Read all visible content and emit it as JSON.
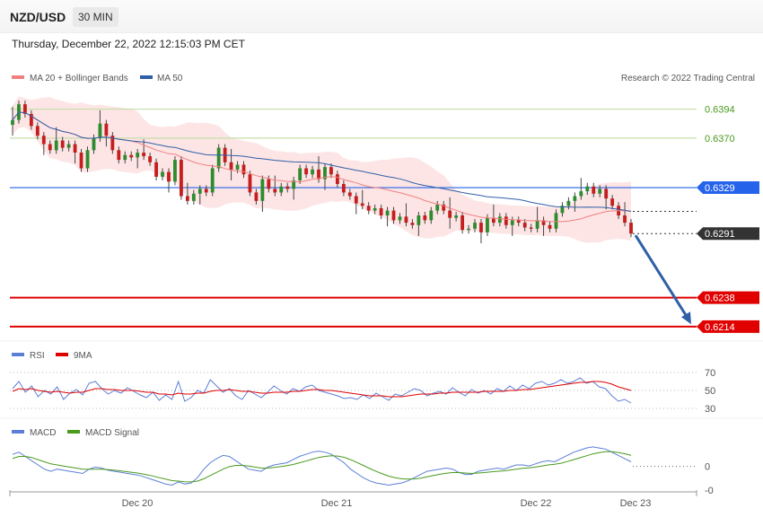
{
  "header": {
    "pair": "NZD/USD",
    "timeframe": "30 MIN",
    "datetime": "Thursday, December 22, 2022 12:15:03 PM CET",
    "copyright": "Research © 2022 Trading Central"
  },
  "colors": {
    "ma20": "#f08080",
    "ma50": "#2f5fa8",
    "bollinger": "#fde0e0",
    "bull": "#2e8b2e",
    "bear": "#c41e1e",
    "support": "#e00000",
    "resistance_green": "#7ab55c",
    "pivot_blue": "#2563eb",
    "current": "#333333",
    "arrow": "#2f5fa8",
    "rsi": "#5b7fd6",
    "rsi_ma": "#e00000",
    "macd": "#5b7fd6",
    "macd_signal": "#4a9a1e"
  },
  "chart_data": [
    {
      "type": "candlestick",
      "legend": [
        "MA 20 + Bollinger Bands",
        "MA 50"
      ],
      "ylim": [
        0.6205,
        0.641
      ],
      "x_ticks": [
        "Dec 20",
        "Dec 21",
        "Dec 22",
        "Dec 23"
      ],
      "levels": [
        {
          "label": "0.6394",
          "value": 0.6394,
          "kind": "resistance_green"
        },
        {
          "label": "0.6370",
          "value": 0.637,
          "kind": "resistance_green"
        },
        {
          "label": "0.6329",
          "value": 0.6329,
          "kind": "pivot_blue"
        },
        {
          "label": "0.6291",
          "value": 0.6291,
          "kind": "current"
        },
        {
          "label": "0.6238",
          "value": 0.6238,
          "kind": "support"
        },
        {
          "label": "0.6214",
          "value": 0.6214,
          "kind": "support"
        }
      ],
      "close": [
        0.6385,
        0.6398,
        0.639,
        0.638,
        0.6372,
        0.6365,
        0.636,
        0.6368,
        0.6362,
        0.6365,
        0.6358,
        0.6345,
        0.636,
        0.637,
        0.6382,
        0.6372,
        0.636,
        0.6352,
        0.6356,
        0.6354,
        0.6358,
        0.6355,
        0.635,
        0.6338,
        0.6342,
        0.6334,
        0.6352,
        0.6322,
        0.6318,
        0.6324,
        0.6328,
        0.6325,
        0.6345,
        0.6362,
        0.635,
        0.6344,
        0.6348,
        0.634,
        0.6325,
        0.6318,
        0.6336,
        0.6328,
        0.6325,
        0.633,
        0.6328,
        0.6335,
        0.6345,
        0.634,
        0.6344,
        0.6336,
        0.6346,
        0.634,
        0.6332,
        0.6325,
        0.6322,
        0.6316,
        0.6314,
        0.631,
        0.6312,
        0.6306,
        0.631,
        0.6302,
        0.6305,
        0.63,
        0.6298,
        0.6306,
        0.6302,
        0.631,
        0.6315,
        0.631,
        0.6304,
        0.6306,
        0.6294,
        0.6295,
        0.63,
        0.6292,
        0.6304,
        0.63,
        0.6305,
        0.6298,
        0.6302,
        0.63,
        0.6296,
        0.6295,
        0.6302,
        0.6298,
        0.6295,
        0.6308,
        0.6314,
        0.6318,
        0.6322,
        0.6326,
        0.633,
        0.6324,
        0.6328,
        0.632,
        0.6314,
        0.6306,
        0.63,
        0.6291
      ],
      "rsi": {
        "legend": [
          "RSI",
          "9MA"
        ],
        "ticks": [
          "70",
          "50",
          "30"
        ],
        "rsi_values": [
          52,
          60,
          48,
          55,
          43,
          50,
          46,
          54,
          40,
          47,
          51,
          45,
          58,
          60,
          52,
          46,
          50,
          47,
          53,
          49,
          45,
          42,
          48,
          39,
          45,
          40,
          60,
          38,
          42,
          50,
          47,
          62,
          55,
          48,
          52,
          44,
          40,
          50,
          46,
          42,
          48,
          55,
          50,
          46,
          52,
          49,
          54,
          56,
          50,
          48,
          46,
          44,
          41,
          42,
          40,
          45,
          41,
          47,
          43,
          39,
          46,
          44,
          48,
          52,
          50,
          44,
          47,
          49,
          46,
          53,
          48,
          44,
          51,
          47,
          50,
          46,
          52,
          49,
          55,
          50,
          56,
          52,
          58,
          60,
          56,
          58,
          62,
          58,
          60,
          64,
          58,
          60,
          54,
          52,
          44,
          38,
          40,
          36
        ],
        "ma_values": [
          49,
          52,
          51,
          52,
          50,
          49,
          48,
          49,
          48,
          47,
          48,
          48,
          50,
          52,
          52,
          51,
          51,
          50,
          50,
          50,
          49,
          48,
          48,
          46,
          46,
          45,
          47,
          46,
          46,
          47,
          47,
          49,
          50,
          50,
          51,
          50,
          49,
          49,
          48,
          47,
          47,
          48,
          48,
          48,
          49,
          49,
          50,
          51,
          51,
          50,
          50,
          49,
          48,
          47,
          46,
          45,
          44,
          44,
          44,
          43,
          43,
          43,
          44,
          45,
          46,
          46,
          46,
          47,
          47,
          48,
          48,
          48,
          48,
          48,
          49,
          49,
          49,
          49,
          50,
          50,
          51,
          51,
          52,
          53,
          54,
          55,
          56,
          57,
          58,
          59,
          59,
          60,
          60,
          59,
          57,
          54,
          52,
          50
        ]
      },
      "macd": {
        "legend": [
          "MACD",
          "MACD Signal"
        ],
        "ticks": [
          "0",
          "-0"
        ],
        "macd_values": [
          0.4,
          0.5,
          0.3,
          0.1,
          -0.1,
          -0.3,
          -0.4,
          -0.3,
          -0.35,
          -0.4,
          -0.45,
          -0.5,
          -0.3,
          -0.2,
          -0.25,
          -0.35,
          -0.4,
          -0.45,
          -0.5,
          -0.55,
          -0.6,
          -0.7,
          -0.8,
          -0.9,
          -1.0,
          -1.05,
          -0.9,
          -1.0,
          -0.95,
          -0.7,
          -0.3,
          0.0,
          0.2,
          0.35,
          0.3,
          0.1,
          -0.1,
          -0.3,
          -0.35,
          -0.4,
          -0.2,
          -0.1,
          -0.05,
          0.0,
          0.15,
          0.3,
          0.4,
          0.5,
          0.55,
          0.5,
          0.4,
          0.2,
          0.0,
          -0.3,
          -0.5,
          -0.7,
          -0.85,
          -0.95,
          -1.0,
          -1.05,
          -1.0,
          -0.95,
          -0.85,
          -0.7,
          -0.55,
          -0.4,
          -0.35,
          -0.3,
          -0.25,
          -0.3,
          -0.45,
          -0.55,
          -0.55,
          -0.4,
          -0.35,
          -0.3,
          -0.25,
          -0.3,
          -0.2,
          -0.1,
          -0.1,
          -0.15,
          -0.05,
          0.05,
          0.1,
          0.05,
          0.2,
          0.35,
          0.5,
          0.6,
          0.7,
          0.75,
          0.7,
          0.65,
          0.5,
          0.35,
          0.2,
          0.05
        ],
        "signal_values": [
          0.2,
          0.3,
          0.3,
          0.25,
          0.15,
          0.05,
          -0.05,
          -0.1,
          -0.15,
          -0.2,
          -0.25,
          -0.3,
          -0.3,
          -0.3,
          -0.3,
          -0.32,
          -0.35,
          -0.38,
          -0.42,
          -0.46,
          -0.5,
          -0.56,
          -0.62,
          -0.7,
          -0.77,
          -0.84,
          -0.86,
          -0.89,
          -0.9,
          -0.86,
          -0.75,
          -0.6,
          -0.45,
          -0.3,
          -0.18,
          -0.12,
          -0.12,
          -0.15,
          -0.2,
          -0.25,
          -0.25,
          -0.22,
          -0.18,
          -0.14,
          -0.08,
          0.0,
          0.08,
          0.17,
          0.25,
          0.3,
          0.33,
          0.32,
          0.26,
          0.15,
          0.02,
          -0.12,
          -0.27,
          -0.4,
          -0.52,
          -0.63,
          -0.7,
          -0.75,
          -0.77,
          -0.76,
          -0.72,
          -0.66,
          -0.6,
          -0.54,
          -0.49,
          -0.46,
          -0.46,
          -0.48,
          -0.5,
          -0.48,
          -0.46,
          -0.43,
          -0.4,
          -0.38,
          -0.34,
          -0.3,
          -0.26,
          -0.24,
          -0.2,
          -0.15,
          -0.1,
          -0.07,
          -0.02,
          0.06,
          0.15,
          0.24,
          0.33,
          0.42,
          0.48,
          0.52,
          0.52,
          0.49,
          0.43,
          0.35
        ]
      }
    }
  ]
}
